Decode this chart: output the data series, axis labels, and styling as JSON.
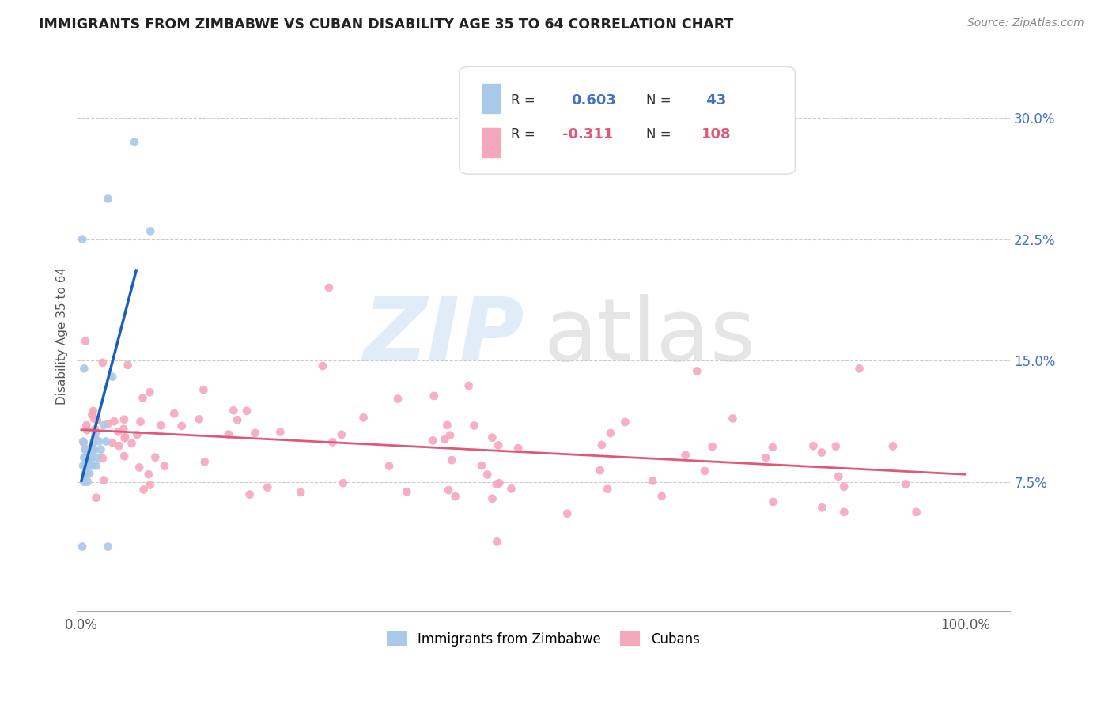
{
  "title": "IMMIGRANTS FROM ZIMBABWE VS CUBAN DISABILITY AGE 35 TO 64 CORRELATION CHART",
  "source": "Source: ZipAtlas.com",
  "ylabel": "Disability Age 35 to 64",
  "r_zimbabwe": 0.603,
  "n_zimbabwe": 43,
  "r_cuban": -0.311,
  "n_cuban": 108,
  "color_zimbabwe": "#aac8e8",
  "color_cuban": "#f5a8bc",
  "trendline_zimbabwe": "#1a5fba",
  "trendline_cuban": "#e05878",
  "legend_color": "#4472c4",
  "legend_r_color": "#4472c4",
  "legend_n_color": "#4472c4",
  "watermark_zip_color": "#c8dff5",
  "watermark_atlas_color": "#d8d8d8",
  "ylim": [
    -0.005,
    0.335
  ],
  "xlim": [
    -0.005,
    1.05
  ],
  "yticks": [
    0.0,
    0.075,
    0.15,
    0.225,
    0.3
  ],
  "ytick_labels": [
    "",
    "7.5%",
    "15.0%",
    "22.5%",
    "30.0%"
  ]
}
